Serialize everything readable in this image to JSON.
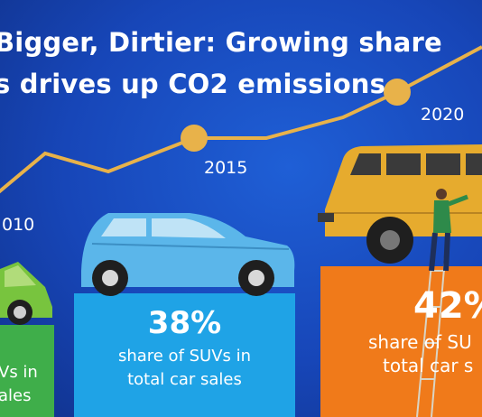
{
  "headline": {
    "line1": "Bigger, Dirtier: Growing share",
    "line2": "s drives up CO2 emissions"
  },
  "years": {
    "y2010": "010",
    "y2015": "2015",
    "y2020": "2020"
  },
  "stats": {
    "left": {
      "percent": "",
      "caption_line1": "Vs in",
      "caption_line2": "ales"
    },
    "middle": {
      "percent": "38%",
      "caption_line1": "share of SUVs in",
      "caption_line2": "total car sales"
    },
    "right": {
      "percent": "42%",
      "caption_line1": "share of SU",
      "caption_line2": "total car s"
    }
  },
  "colors": {
    "background": "#1a4fc4",
    "trend_line": "#e8b24a",
    "green_block": "#3fae4a",
    "cyan_block": "#1fa3e6",
    "orange_block": "#f07a1a",
    "van": "#5bb6ea",
    "suv": "#e6ab2e"
  }
}
